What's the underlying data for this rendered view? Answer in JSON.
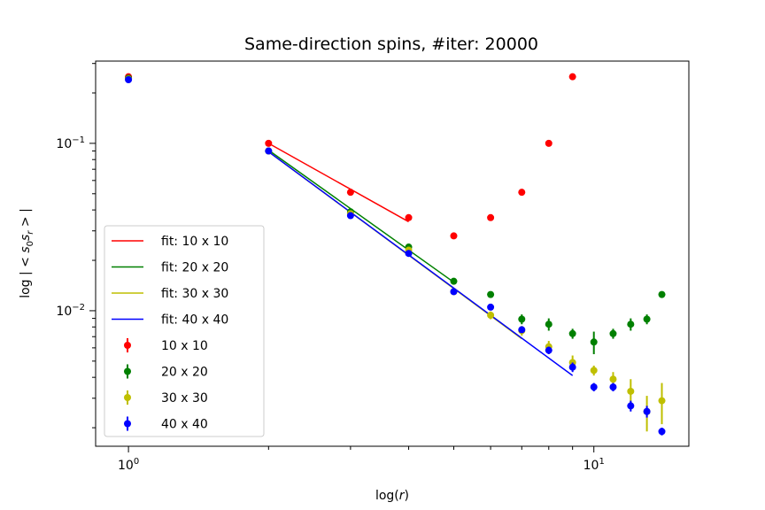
{
  "chart_data": {
    "type": "scatter",
    "title": "Same-direction spins, #iter: 20000",
    "xlabel": "log(r)",
    "ylabel": "log | < s_0 s_r > |",
    "xscale": "log",
    "yscale": "log",
    "xlim": [
      0.85,
      16.0
    ],
    "ylim": [
      0.00155,
      0.31
    ],
    "xticks": [
      {
        "value": 1,
        "base": "10",
        "exp": "0"
      },
      {
        "value": 10,
        "base": "10",
        "exp": "1"
      }
    ],
    "yticks": [
      {
        "value": 0.1,
        "base": "10",
        "exp": "−1"
      },
      {
        "value": 0.01,
        "base": "10",
        "exp": "−2"
      }
    ],
    "grid": false,
    "legend_position": "lower-left",
    "series": [
      {
        "name": "10 x 10",
        "color": "#ff0000",
        "x": [
          1,
          2,
          3,
          4,
          5,
          6,
          7,
          8,
          9
        ],
        "y": [
          0.25,
          0.1,
          0.051,
          0.036,
          0.028,
          0.036,
          0.051,
          0.1,
          0.25
        ],
        "err": [
          0.0015,
          0.0008,
          0.0006,
          0.0014,
          0.0004,
          0.0005,
          0.0006,
          0.0008,
          0.0015
        ]
      },
      {
        "name": "20 x 20",
        "color": "#008000",
        "x": [
          1,
          2,
          3,
          4,
          5,
          6,
          7,
          8,
          9,
          10,
          11,
          12,
          13,
          14
        ],
        "y": [
          0.245,
          0.09,
          0.039,
          0.024,
          0.015,
          0.0125,
          0.0089,
          0.0083,
          0.0073,
          0.0065,
          0.0073,
          0.0083,
          0.0089,
          0.0125
        ],
        "err": [
          0.001,
          0.0008,
          0.0006,
          0.0005,
          0.0004,
          0.0005,
          0.0006,
          0.0007,
          0.0005,
          0.001,
          0.0005,
          0.0007,
          0.0006,
          0.0005
        ]
      },
      {
        "name": "30 x 30",
        "color": "#bfbf00",
        "x": [
          1,
          2,
          3,
          4,
          5,
          6,
          7,
          8,
          9,
          10,
          11,
          12,
          13,
          14
        ],
        "y": [
          0.242,
          0.09,
          0.038,
          0.023,
          0.013,
          0.0094,
          0.0076,
          0.0061,
          0.0049,
          0.0044,
          0.0039,
          0.0033,
          0.0025,
          0.0029
        ],
        "err": [
          0.001,
          0.0008,
          0.0005,
          0.0005,
          0.0004,
          0.0005,
          0.0005,
          0.0005,
          0.0005,
          0.0003,
          0.0004,
          0.0006,
          0.0006,
          0.0008
        ]
      },
      {
        "name": "40 x 40",
        "color": "#0000ff",
        "x": [
          1,
          2,
          3,
          4,
          5,
          6,
          7,
          8,
          9,
          10,
          11,
          12,
          13,
          14
        ],
        "y": [
          0.24,
          0.09,
          0.037,
          0.022,
          0.013,
          0.0105,
          0.0077,
          0.0058,
          0.0046,
          0.0035,
          0.0035,
          0.0027,
          0.0025,
          0.0019
        ],
        "err": [
          0.001,
          0.0008,
          0.0005,
          0.0004,
          0.0003,
          0.0003,
          0.0003,
          0.0003,
          0.0003,
          0.0002,
          0.0002,
          0.0002,
          0.0002,
          0.0001
        ]
      }
    ],
    "fits": [
      {
        "name": "fit: 10 x 10",
        "color": "#ff0000",
        "x": [
          2,
          4
        ],
        "y": [
          0.1,
          0.034
        ]
      },
      {
        "name": "fit: 20 x 20",
        "color": "#008000",
        "x": [
          2,
          5
        ],
        "y": [
          0.091,
          0.0148
        ]
      },
      {
        "name": "fit: 30 x 30",
        "color": "#bfbf00",
        "x": [
          2,
          7
        ],
        "y": [
          0.089,
          0.0068
        ]
      },
      {
        "name": "fit: 40 x 40",
        "color": "#0000ff",
        "x": [
          2,
          9
        ],
        "y": [
          0.089,
          0.0041
        ]
      }
    ]
  }
}
